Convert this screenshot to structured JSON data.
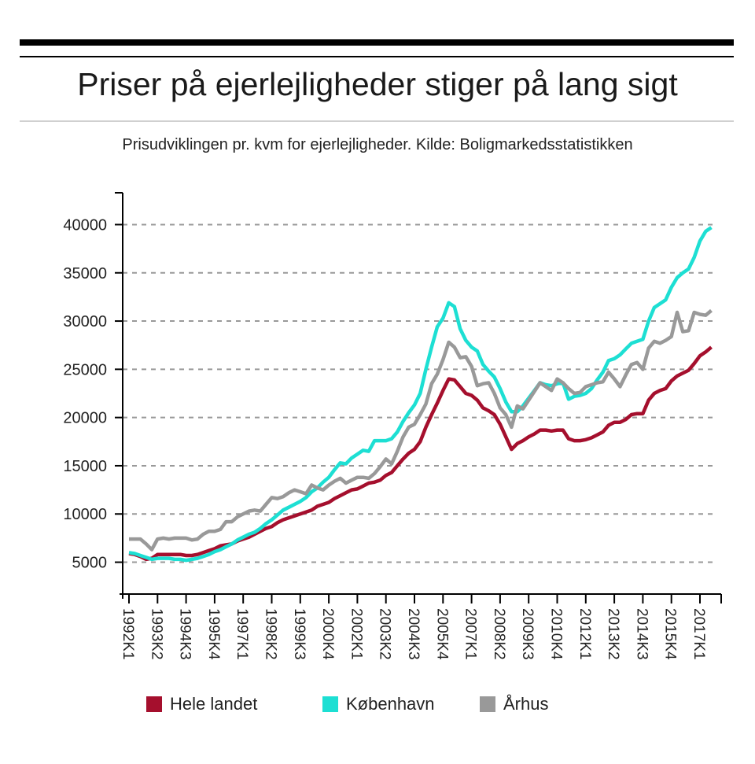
{
  "title": "Priser på ejerlejligheder stiger på lang sigt",
  "subtitle": "Prisudviklingen pr. kvm for ejerlejligheder. Kilde: Boligmarkedsstatistikken",
  "chart_data": {
    "type": "line",
    "title": "Priser på ejerlejligheder stiger på lang sigt",
    "xlabel": "",
    "ylabel": "",
    "start_quarter": "1992K1",
    "ylim": [
      1700,
      43300
    ],
    "y_ticks": [
      5000,
      10000,
      15000,
      20000,
      25000,
      30000,
      35000,
      40000
    ],
    "x_tick_labels": [
      "1992K1",
      "1993K2",
      "1994K3",
      "1995K4",
      "1997K1",
      "1998K2",
      "1999K3",
      "2000K4",
      "2002K1",
      "2003K2",
      "2004K3",
      "2005K4",
      "2007K1",
      "2008K2",
      "2009K3",
      "2010K4",
      "2012K1",
      "2013K2",
      "2014K3",
      "2015K4",
      "2017K1"
    ],
    "grid": "horizontal dashed",
    "legend_position": "bottom",
    "series": [
      {
        "name": "Hele landet",
        "color": "#a50f2d",
        "values": [
          5900,
          5800,
          5600,
          5300,
          5400,
          5800,
          5800,
          5800,
          5800,
          5800,
          5700,
          5700,
          5800,
          6000,
          6200,
          6400,
          6700,
          6800,
          6900,
          7200,
          7400,
          7600,
          7900,
          8200,
          8500,
          8700,
          9100,
          9400,
          9600,
          9800,
          10000,
          10200,
          10400,
          10800,
          11000,
          11200,
          11600,
          11900,
          12200,
          12500,
          12600,
          12900,
          13200,
          13300,
          13500,
          14000,
          14300,
          15000,
          15700,
          16300,
          16700,
          17500,
          19000,
          20300,
          21500,
          22800,
          24000,
          23900,
          23200,
          22500,
          22300,
          21800,
          21000,
          20700,
          20300,
          19300,
          18000,
          16700,
          17300,
          17600,
          18000,
          18300,
          18700,
          18700,
          18600,
          18700,
          18700,
          17800,
          17600,
          17600,
          17700,
          17900,
          18200,
          18500,
          19200,
          19500,
          19500,
          19800,
          20300,
          20400,
          20400,
          21800,
          22500,
          22800,
          23000,
          23800,
          24300,
          24600,
          24900,
          25600,
          26400,
          26800,
          27300
        ]
      },
      {
        "name": "København",
        "color": "#1ddfd3",
        "values": [
          6000,
          5900,
          5700,
          5500,
          5300,
          5400,
          5400,
          5400,
          5300,
          5300,
          5200,
          5300,
          5400,
          5600,
          5800,
          6100,
          6300,
          6600,
          6900,
          7300,
          7600,
          7900,
          8100,
          8500,
          9000,
          9400,
          9900,
          10400,
          10700,
          11000,
          11300,
          11700,
          12300,
          12700,
          13300,
          13800,
          14600,
          15300,
          15200,
          15800,
          16200,
          16600,
          16500,
          17600,
          17600,
          17600,
          17800,
          18500,
          19600,
          20500,
          21300,
          22500,
          25000,
          27300,
          29400,
          30300,
          31900,
          31500,
          29200,
          28000,
          27300,
          26900,
          25500,
          24800,
          24200,
          23000,
          21600,
          20600,
          20600,
          21200,
          22000,
          22800,
          23600,
          23400,
          23300,
          23500,
          23600,
          21900,
          22200,
          22300,
          22500,
          23000,
          23900,
          24700,
          25900,
          26100,
          26500,
          27100,
          27700,
          27900,
          28100,
          30000,
          31400,
          31800,
          32200,
          33500,
          34500,
          35000,
          35400,
          36600,
          38300,
          39300,
          39700
        ]
      },
      {
        "name": "Århus",
        "color": "#999999",
        "values": [
          7400,
          7400,
          7400,
          6900,
          6300,
          7400,
          7500,
          7400,
          7500,
          7500,
          7500,
          7300,
          7400,
          7900,
          8200,
          8200,
          8400,
          9200,
          9200,
          9700,
          10000,
          10300,
          10400,
          10300,
          11000,
          11700,
          11600,
          11800,
          12200,
          12500,
          12300,
          12100,
          13000,
          12700,
          12500,
          13000,
          13400,
          13700,
          13200,
          13500,
          13800,
          13800,
          13700,
          14200,
          14900,
          15700,
          15200,
          16500,
          18000,
          19000,
          19300,
          20300,
          21400,
          23500,
          24500,
          26000,
          27800,
          27300,
          26200,
          26300,
          25300,
          23300,
          23500,
          23600,
          22500,
          21000,
          20300,
          19000,
          21200,
          20900,
          21800,
          22700,
          23600,
          23200,
          22800,
          24000,
          23600,
          23000,
          22500,
          22600,
          23200,
          23400,
          23600,
          23700,
          24700,
          24000,
          23200,
          24400,
          25500,
          25700,
          25000,
          27200,
          27900,
          27700,
          28000,
          28400,
          30900,
          28900,
          29000,
          30900,
          30700,
          30600,
          31100
        ]
      }
    ]
  }
}
